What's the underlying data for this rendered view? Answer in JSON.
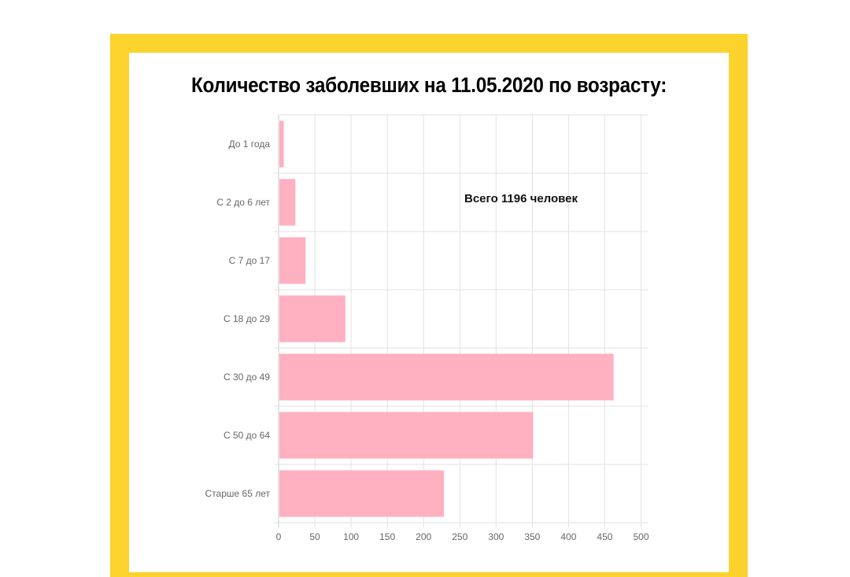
{
  "chart_data": {
    "type": "bar",
    "orientation": "horizontal",
    "title": "Количество заболевших на 11.05.2020 по возрасту:",
    "annotation": "Всего 1196 человек",
    "categories": [
      "До 1 года",
      "С 2 до 6 лет",
      "С 7 до 17",
      "С 18 до 29",
      "С 30 до 49",
      "С 50 до 64",
      "Старше 65 лет"
    ],
    "values": [
      6,
      22,
      36,
      91,
      461,
      350,
      227
    ],
    "x_ticks": [
      0,
      50,
      100,
      150,
      200,
      250,
      300,
      350,
      400,
      450,
      500
    ],
    "xlim": [
      0,
      510
    ],
    "xlabel": "",
    "ylabel": "",
    "grid": true,
    "bar_color": "#FFB0C1"
  },
  "colors": {
    "frame": "#FCD22C",
    "bar": "#FFB0C1"
  }
}
